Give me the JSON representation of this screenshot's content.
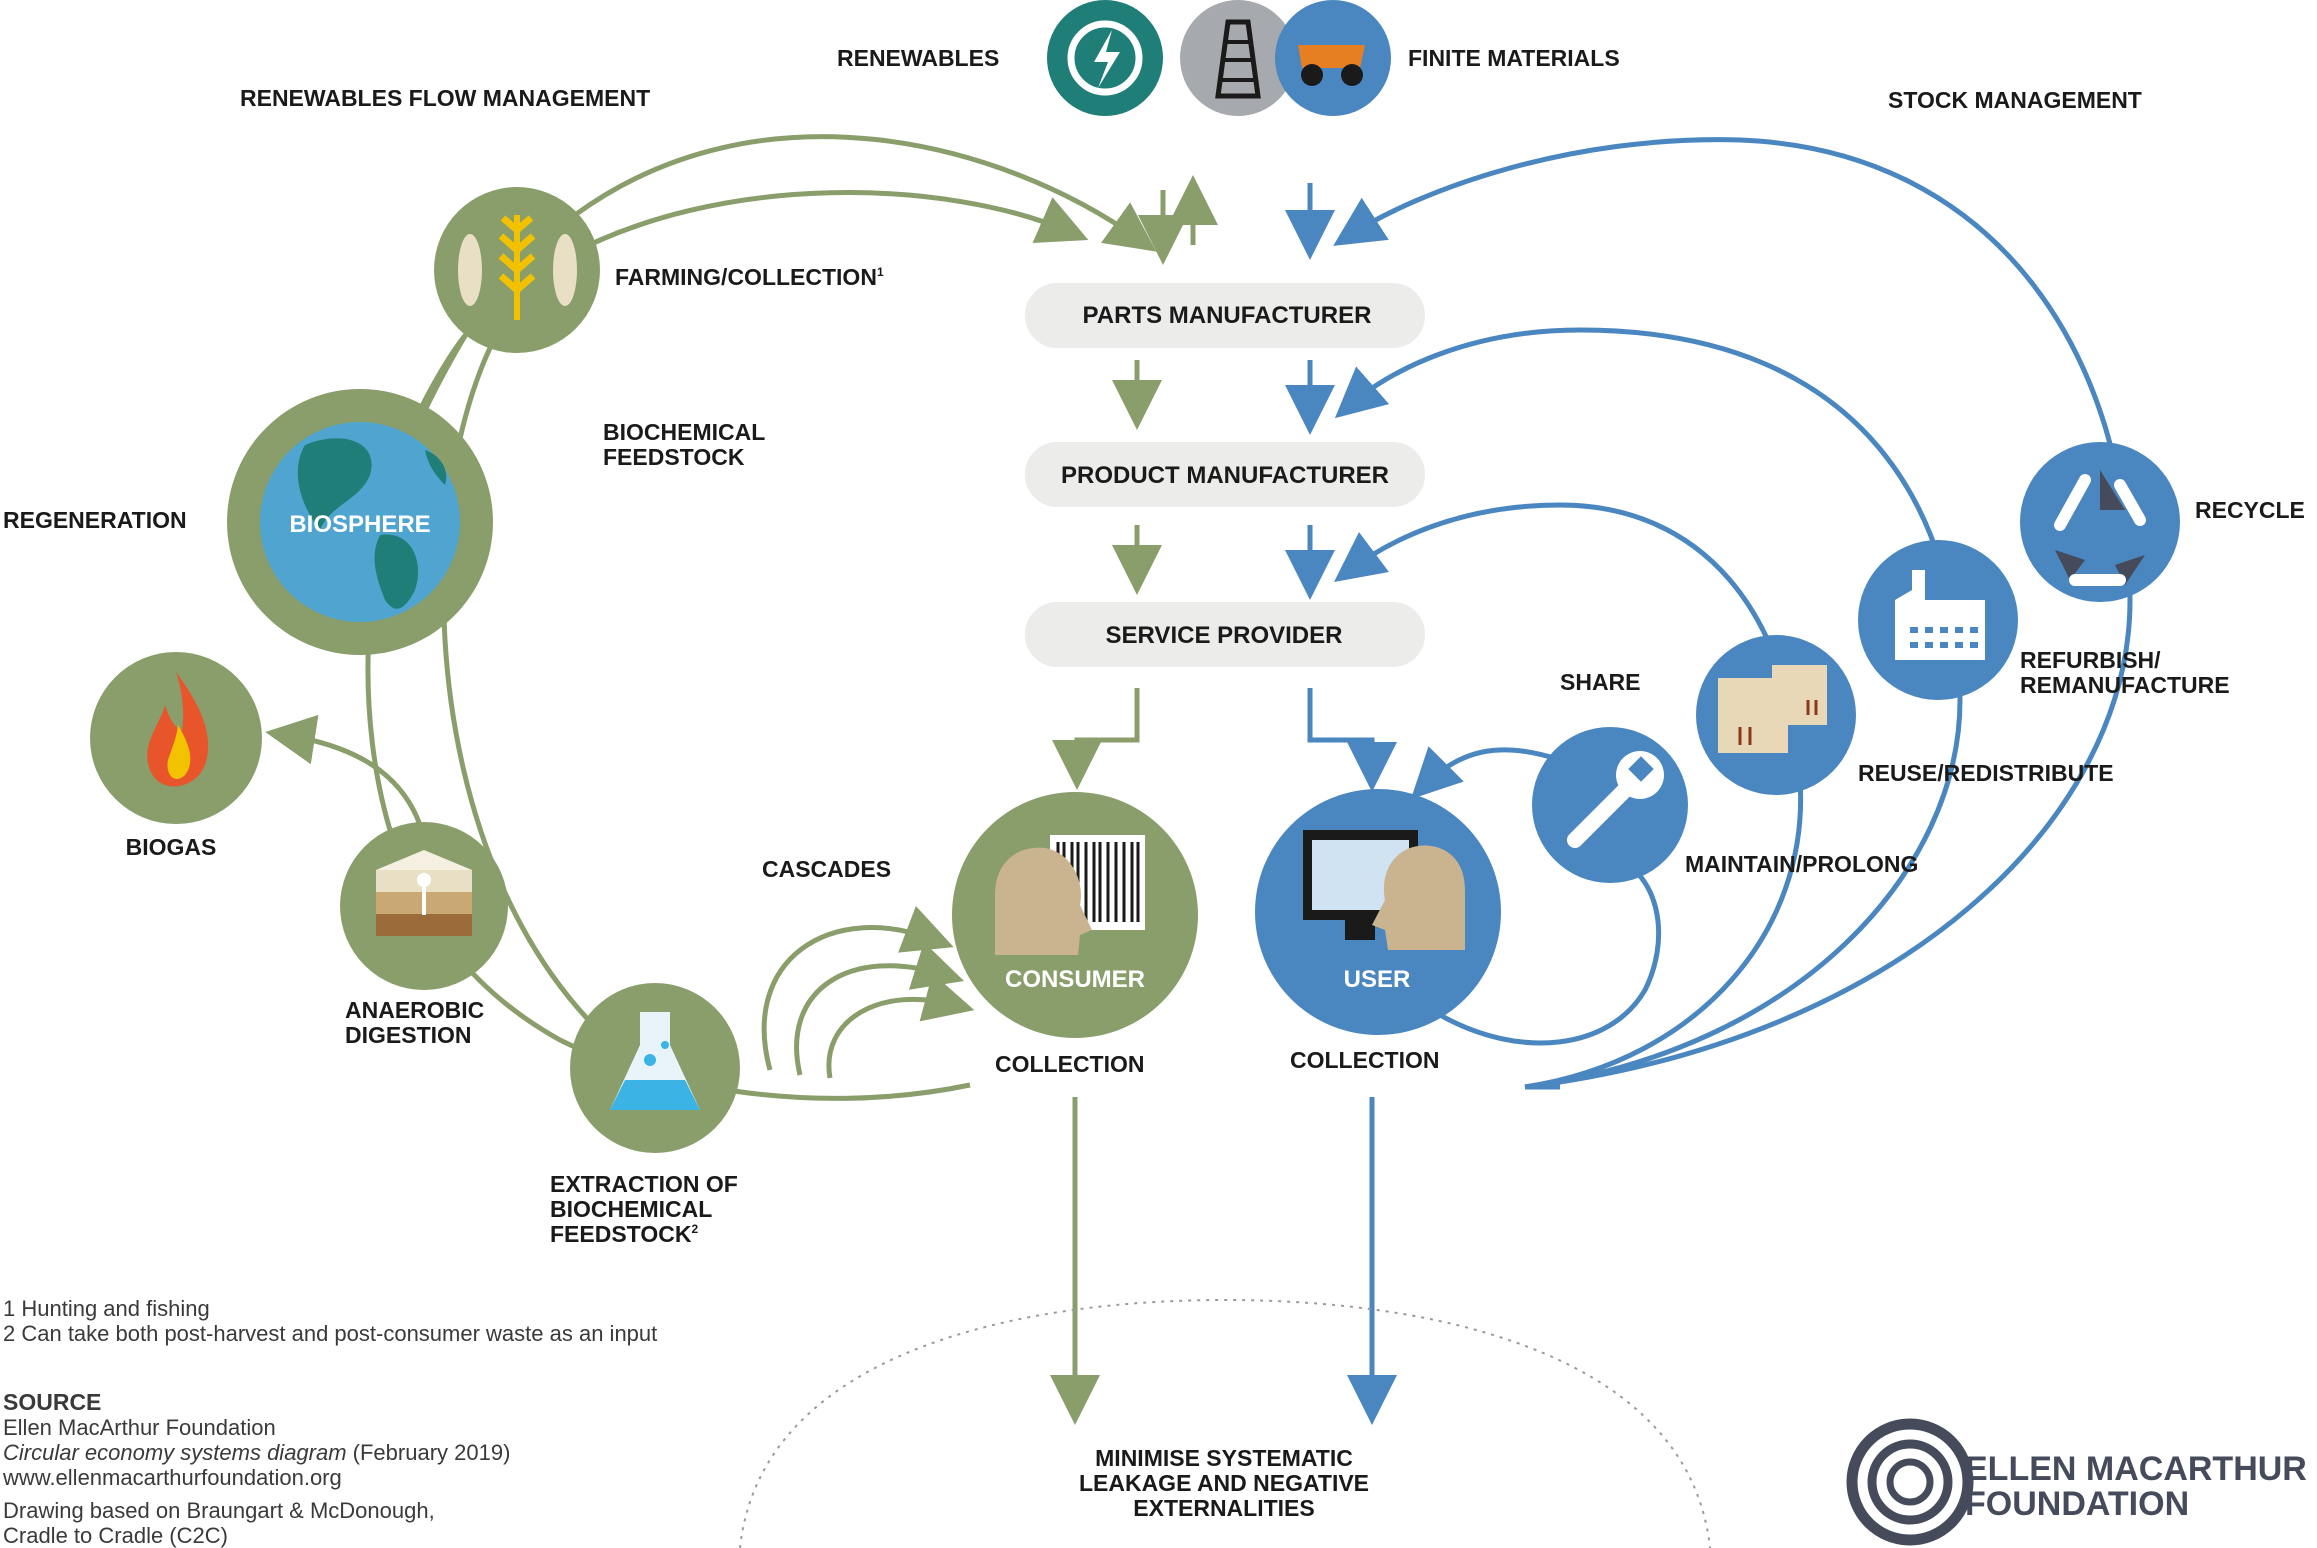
{
  "colors": {
    "green": "#8a9e6b",
    "blue": "#4a86c0",
    "dark_green_text": "#ffffff",
    "box": "#ececeb",
    "logo": "#454b5a"
  },
  "top": {
    "renewables": "RENEWABLES",
    "finite_materials": "FINITE MATERIALS",
    "renewables_flow_management": "RENEWABLES FLOW MANAGEMENT",
    "stock_management": "STOCK MANAGEMENT"
  },
  "chain": {
    "parts_manufacturer": "PARTS MANUFACTURER",
    "product_manufacturer": "PRODUCT MANUFACTURER",
    "service_provider": "SERVICE PROVIDER"
  },
  "bio": {
    "farming_collection": "FARMING/COLLECTION",
    "farming_sup": "1",
    "biochemical_feedstock_1": "BIOCHEMICAL",
    "biochemical_feedstock_2": "FEEDSTOCK",
    "regeneration": "REGENERATION",
    "biosphere": "BIOSPHERE",
    "biogas": "BIOGAS",
    "anaerobic_1": "ANAEROBIC",
    "anaerobic_2": "DIGESTION",
    "extraction_1": "EXTRACTION OF",
    "extraction_2": "BIOCHEMICAL",
    "extraction_3": "FEEDSTOCK",
    "extraction_sup": "2",
    "cascades": "CASCADES",
    "consumer": "CONSUMER",
    "collection": "COLLECTION"
  },
  "tech": {
    "user": "USER",
    "collection": "COLLECTION",
    "share": "SHARE",
    "maintain_prolong": "MAINTAIN/PROLONG",
    "reuse_redistribute": "REUSE/REDISTRIBUTE",
    "refurbish_1": "REFURBISH/",
    "refurbish_2": "REMANUFACTURE",
    "recycle": "RECYCLE"
  },
  "bottom": {
    "minimise_1": "MINIMISE SYSTEMATIC",
    "minimise_2": "LEAKAGE AND NEGATIVE",
    "minimise_3": "EXTERNALITIES"
  },
  "footnotes": {
    "note1": "1 Hunting and fishing",
    "note2": "2 Can take both post-harvest and post-consumer waste as an input"
  },
  "source": {
    "heading": "SOURCE",
    "line1": "Ellen MacArthur Foundation",
    "line2_title": "Circular economy systems diagram",
    "line2_date": " (February 2019)",
    "line3": "www.ellenmacarthurfoundation.org",
    "line4": "Drawing based on Braungart & McDonough,",
    "line5": "Cradle to Cradle (C2C)"
  },
  "logo": {
    "line1": "ELLEN MACARTHUR",
    "line2": "FOUNDATION"
  },
  "icons": {
    "renewables": "lightning-recycle-icon",
    "finite_1": "oil-rig-icon",
    "finite_2": "mining-truck-icon",
    "farming": "fish-wheat-icon",
    "biosphere": "globe-icon",
    "biogas": "flame-icon",
    "anaerobic": "soil-layers-icon",
    "extraction": "flask-icon",
    "consumer": "person-barcode-icon",
    "user": "person-computer-icon",
    "share": "wrench-icon",
    "reuse": "boxes-icon",
    "refurbish": "factory-icon",
    "recycle": "recycle-icon",
    "logo": "concentric-rings-icon"
  }
}
